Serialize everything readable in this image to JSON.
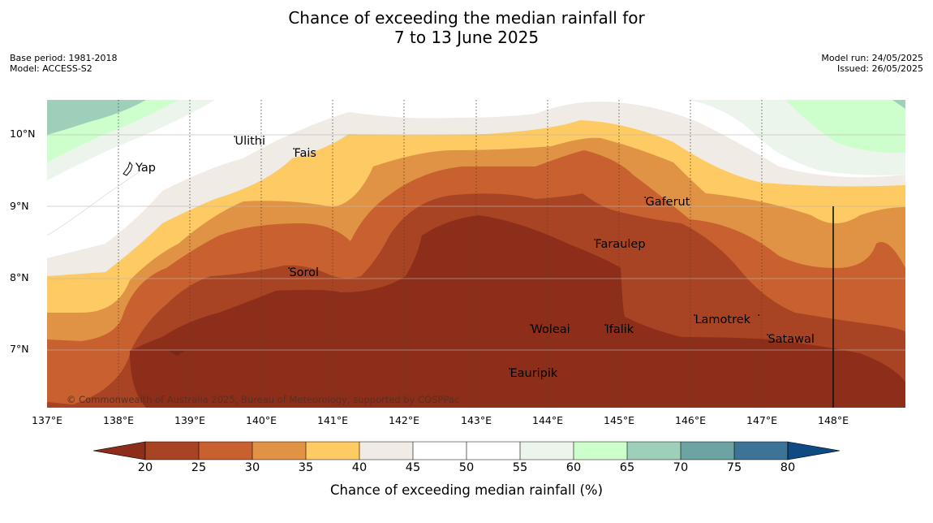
{
  "title": {
    "line1": "Chance of exceeding the median rainfall for",
    "line2": "7 to 13 June 2025"
  },
  "meta": {
    "base_period": "Base period: 1981-2018",
    "model": "Model: ACCESS-S2",
    "model_run": "Model run: 24/05/2025",
    "issued": "Issued: 26/05/2025"
  },
  "axes": {
    "lat_labels": [
      "10°N",
      "9°N",
      "8°N",
      "7°N"
    ],
    "lon_labels": [
      "137°E",
      "138°E",
      "139°E",
      "140°E",
      "141°E",
      "142°E",
      "143°E",
      "144°E",
      "145°E",
      "146°E",
      "147°E",
      "148°E"
    ]
  },
  "places": {
    "yap": "Yap",
    "ulithi": "Ulithi",
    "fais": "Fais",
    "gaferut": "Gaferut",
    "faraulep": "Faraulep",
    "sorol": "Sorol",
    "woleai": "Woleai",
    "ifalik": "Ifalik",
    "lamotrek": "Lamotrek",
    "satawal": "Satawal",
    "eauripik": "Eauripik"
  },
  "copyright": "© Commonwealth of Australia 2025, Bureau of Meteorology, supported by COSPPac",
  "colorbar": {
    "label": "Chance of exceeding median rainfall (%)",
    "ticks": [
      "20",
      "25",
      "30",
      "35",
      "40",
      "45",
      "50",
      "55",
      "60",
      "65",
      "70",
      "75",
      "80"
    ],
    "colors": [
      "#8c2e1a",
      "#a84423",
      "#c8612f",
      "#e09345",
      "#fdca63",
      "#f0ebe5",
      "#ffffff",
      "#ffffff",
      "#ebf5eb",
      "#ccffcc",
      "#9ecfba",
      "#6da3a3",
      "#3d7396",
      "#0f4a82"
    ]
  }
}
